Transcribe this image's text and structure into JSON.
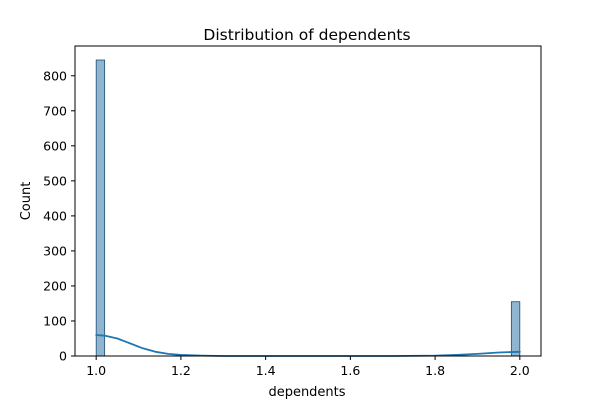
{
  "chart_data": {
    "type": "bar",
    "title": "Distribution of dependents",
    "xlabel": "dependents",
    "ylabel": "Count",
    "xlim": [
      0.95,
      2.05
    ],
    "ylim": [
      0,
      885
    ],
    "x_ticks": [
      "1.0",
      "1.2",
      "1.4",
      "1.6",
      "1.8",
      "2.0"
    ],
    "y_ticks": [
      "0",
      "100",
      "200",
      "300",
      "400",
      "500",
      "600",
      "700",
      "800"
    ],
    "bin_edges": [
      1.0,
      1.02,
      1.98,
      2.0
    ],
    "bins": [
      {
        "x0": 1.0,
        "x1": 1.02,
        "count": 845
      },
      {
        "x0": 1.98,
        "x1": 2.0,
        "count": 155
      }
    ],
    "kde": [
      {
        "x": 1.0,
        "y": 60
      },
      {
        "x": 1.02,
        "y": 58
      },
      {
        "x": 1.05,
        "y": 50
      },
      {
        "x": 1.08,
        "y": 36
      },
      {
        "x": 1.11,
        "y": 22
      },
      {
        "x": 1.14,
        "y": 12
      },
      {
        "x": 1.17,
        "y": 6
      },
      {
        "x": 1.2,
        "y": 3
      },
      {
        "x": 1.25,
        "y": 1
      },
      {
        "x": 1.3,
        "y": 0
      },
      {
        "x": 1.5,
        "y": 0
      },
      {
        "x": 1.7,
        "y": 0
      },
      {
        "x": 1.8,
        "y": 1
      },
      {
        "x": 1.85,
        "y": 3
      },
      {
        "x": 1.9,
        "y": 6
      },
      {
        "x": 1.95,
        "y": 10
      },
      {
        "x": 2.0,
        "y": 12
      }
    ],
    "grid": false,
    "colors": {
      "bar_fill": "#8fb5d0",
      "bar_edge": "#1f4e70",
      "kde_line": "#1f77b4"
    }
  }
}
